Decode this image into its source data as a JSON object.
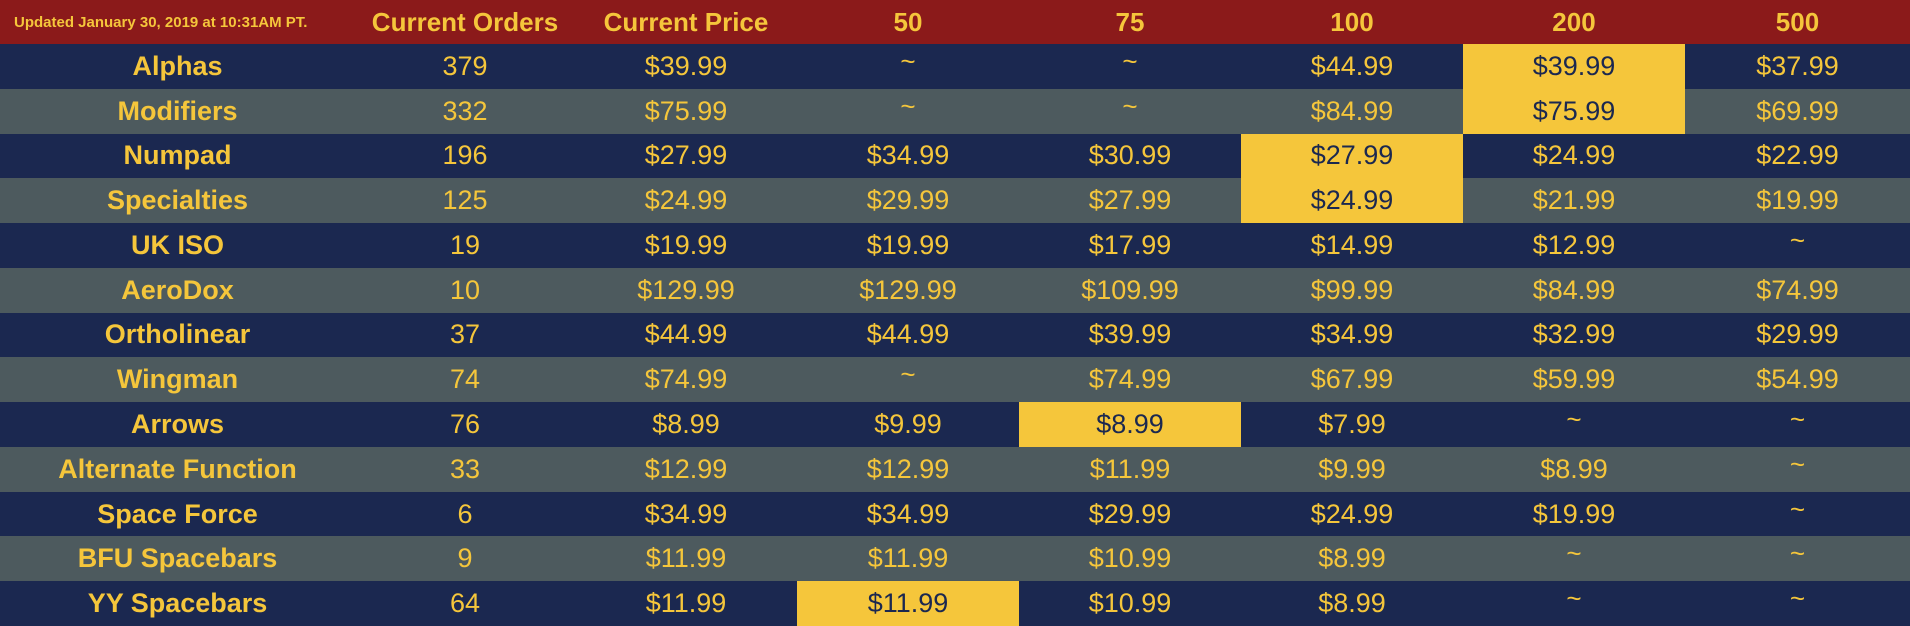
{
  "header": {
    "updated": "Updated January 30, 2019 at 10:31AM PT.",
    "columns": [
      "Current Orders",
      "Current Price",
      "50",
      "75",
      "100",
      "200",
      "500"
    ]
  },
  "highlight_color": "#f5c63b",
  "row_colors": {
    "dark": "#1b2850",
    "gray": "#4d5a5e",
    "header": "#8b1a1a"
  },
  "rows": [
    {
      "name": "Alphas",
      "orders": "379",
      "price": "$39.99",
      "tiers": [
        "~",
        "~",
        "$44.99",
        "$39.99",
        "$37.99"
      ],
      "highlight": 3
    },
    {
      "name": "Modifiers",
      "orders": "332",
      "price": "$75.99",
      "tiers": [
        "~",
        "~",
        "$84.99",
        "$75.99",
        "$69.99"
      ],
      "highlight": 3
    },
    {
      "name": "Numpad",
      "orders": "196",
      "price": "$27.99",
      "tiers": [
        "$34.99",
        "$30.99",
        "$27.99",
        "$24.99",
        "$22.99"
      ],
      "highlight": 2
    },
    {
      "name": "Specialties",
      "orders": "125",
      "price": "$24.99",
      "tiers": [
        "$29.99",
        "$27.99",
        "$24.99",
        "$21.99",
        "$19.99"
      ],
      "highlight": 2
    },
    {
      "name": "UK ISO",
      "orders": "19",
      "price": "$19.99",
      "tiers": [
        "$19.99",
        "$17.99",
        "$14.99",
        "$12.99",
        "~"
      ],
      "highlight": -1
    },
    {
      "name": "AeroDox",
      "orders": "10",
      "price": "$129.99",
      "tiers": [
        "$129.99",
        "$109.99",
        "$99.99",
        "$84.99",
        "$74.99"
      ],
      "highlight": -1
    },
    {
      "name": "Ortholinear",
      "orders": "37",
      "price": "$44.99",
      "tiers": [
        "$44.99",
        "$39.99",
        "$34.99",
        "$32.99",
        "$29.99"
      ],
      "highlight": -1
    },
    {
      "name": "Wingman",
      "orders": "74",
      "price": "$74.99",
      "tiers": [
        "~",
        "$74.99",
        "$67.99",
        "$59.99",
        "$54.99"
      ],
      "highlight": -1
    },
    {
      "name": "Arrows",
      "orders": "76",
      "price": "$8.99",
      "tiers": [
        "$9.99",
        "$8.99",
        "$7.99",
        "~",
        "~"
      ],
      "highlight": 1
    },
    {
      "name": "Alternate Function",
      "orders": "33",
      "price": "$12.99",
      "tiers": [
        "$12.99",
        "$11.99",
        "$9.99",
        "$8.99",
        "~"
      ],
      "highlight": -1
    },
    {
      "name": "Space Force",
      "orders": "6",
      "price": "$34.99",
      "tiers": [
        "$34.99",
        "$29.99",
        "$24.99",
        "$19.99",
        "~"
      ],
      "highlight": -1
    },
    {
      "name": "BFU Spacebars",
      "orders": "9",
      "price": "$11.99",
      "tiers": [
        "$11.99",
        "$10.99",
        "$8.99",
        "~",
        "~"
      ],
      "highlight": -1
    },
    {
      "name": "YY Spacebars",
      "orders": "64",
      "price": "$11.99",
      "tiers": [
        "$11.99",
        "$10.99",
        "$8.99",
        "~",
        "~"
      ],
      "highlight": 0
    }
  ]
}
